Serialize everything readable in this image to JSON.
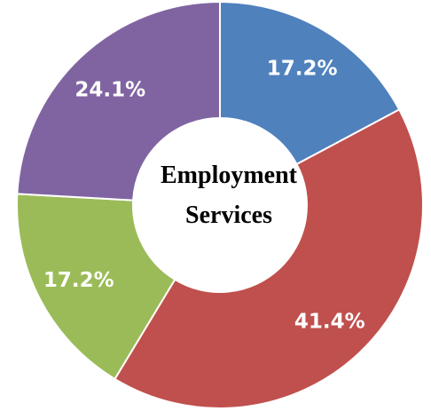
{
  "chart_data": {
    "type": "pie",
    "donut": true,
    "center_text": [
      "Employment",
      "Services"
    ],
    "slices": [
      {
        "value": 17.2,
        "label": "17.2%",
        "color": "#4F81BD"
      },
      {
        "value": 41.4,
        "label": "41.4%",
        "color": "#C0504D"
      },
      {
        "value": 17.2,
        "label": "17.2%",
        "color": "#9BBB59"
      },
      {
        "value": 24.1,
        "label": "24.1%",
        "color": "#8064A2"
      }
    ],
    "legend": "none"
  }
}
